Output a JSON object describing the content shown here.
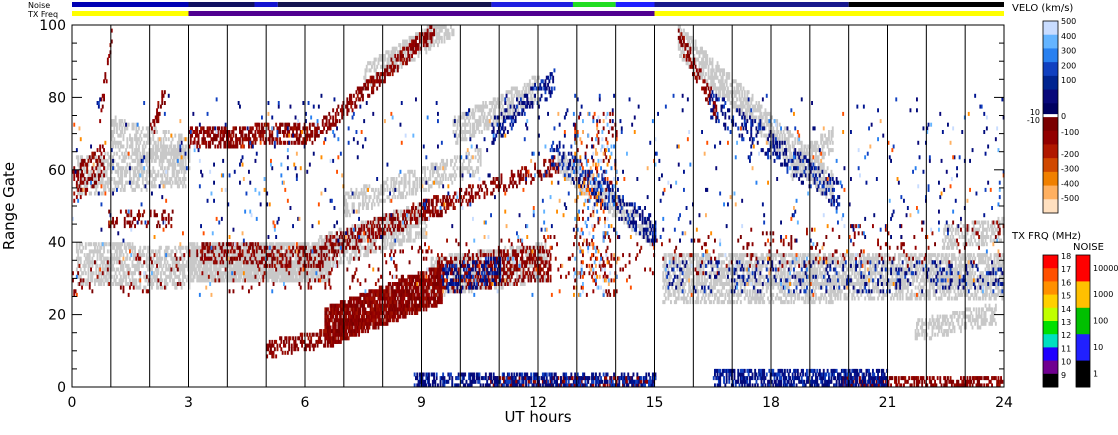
{
  "chart_data": {
    "type": "heatmap",
    "title": "",
    "xlabel": "UT hours",
    "ylabel": "Range Gate",
    "xlim": [
      0,
      24
    ],
    "ylim": [
      0,
      100
    ],
    "x_ticks": [
      0,
      3,
      6,
      9,
      12,
      15,
      18,
      21,
      24
    ],
    "y_ticks": [
      0,
      20,
      40,
      60,
      80,
      100
    ],
    "grid": "vertical lines every 1 UT hour",
    "strip_labels": {
      "noise": "Noise",
      "freq": "TX Freq"
    },
    "noise_strip": [
      {
        "from": 0.0,
        "to": 3.0,
        "color": "#0000b4"
      },
      {
        "from": 3.0,
        "to": 4.7,
        "color": "#101060"
      },
      {
        "from": 4.7,
        "to": 5.3,
        "color": "#1414d0"
      },
      {
        "from": 5.3,
        "to": 10.8,
        "color": "#141450"
      },
      {
        "from": 10.8,
        "to": 12.9,
        "color": "#2020e0"
      },
      {
        "from": 12.9,
        "to": 14.0,
        "color": "#22dd22"
      },
      {
        "from": 14.0,
        "to": 15.0,
        "color": "#2020ff"
      },
      {
        "from": 15.0,
        "to": 20.0,
        "color": "#18188c"
      },
      {
        "from": 20.0,
        "to": 24.0,
        "color": "#000000"
      }
    ],
    "freq_strip": [
      {
        "from": 0.0,
        "to": 3.0,
        "color": "#ffff00"
      },
      {
        "from": 3.0,
        "to": 15.0,
        "color": "#500090"
      },
      {
        "from": 15.0,
        "to": 24.0,
        "color": "#ffff00"
      }
    ],
    "velocity_colorbar": {
      "title": "VELO (km/s)",
      "ticks": [
        500,
        400,
        300,
        200,
        100,
        10,
        0,
        -10,
        -100,
        -200,
        -300,
        -400,
        -500
      ],
      "colors": [
        "#c8dcff",
        "#64b4ff",
        "#2880f0",
        "#1040c0",
        "#002490",
        "#08087a",
        "#000060",
        "#7a0000",
        "#920000",
        "#b01800",
        "#d04800",
        "#f08000",
        "#ffb060",
        "#ffe0c0"
      ]
    },
    "freq_colorbar": {
      "title": "TX FRQ (MHz)",
      "ticks": [
        18,
        17,
        16,
        15,
        14,
        13,
        12,
        11,
        10,
        9
      ],
      "colors": [
        "#ff0000",
        "#ff5000",
        "#ff9000",
        "#ffd000",
        "#c0ff00",
        "#00e000",
        "#00e0c0",
        "#2000ff",
        "#700090",
        "#000000"
      ]
    },
    "noise_colorbar": {
      "title": "NOISE",
      "ticks": [
        "10000",
        "1000",
        "100",
        "10",
        "1"
      ],
      "colors": [
        "#ff0000",
        "#ffc000",
        "#00c000",
        "#2020ff",
        "#000000"
      ]
    },
    "ground_scatter_color": "#c8c8c8",
    "features": [
      {
        "kind": "ground",
        "t0": 0.1,
        "t1": 3.0,
        "g0": 34,
        "g1": 32,
        "w": 10,
        "dens": 0.55
      },
      {
        "kind": "ground",
        "t0": 0.1,
        "t1": 2.9,
        "g0": 58,
        "g1": 60,
        "w": 9,
        "dens": 0.5
      },
      {
        "kind": "ground",
        "t0": 1.0,
        "t1": 3.0,
        "g0": 70,
        "g1": 64,
        "w": 7,
        "dens": 0.45
      },
      {
        "kind": "ground",
        "t0": 3.0,
        "t1": 6.6,
        "g0": 34,
        "g1": 34,
        "w": 10,
        "dens": 0.85
      },
      {
        "kind": "ground",
        "t0": 6.3,
        "t1": 9.1,
        "g0": 36,
        "g1": 46,
        "w": 8,
        "dens": 0.6
      },
      {
        "kind": "ground",
        "t0": 9.2,
        "t1": 12.2,
        "g0": 30,
        "g1": 34,
        "w": 9,
        "dens": 0.55
      },
      {
        "kind": "ground",
        "t0": 7.0,
        "t1": 10.5,
        "g0": 50,
        "g1": 62,
        "w": 5,
        "dens": 0.45
      },
      {
        "kind": "ground",
        "t0": 9.8,
        "t1": 12.0,
        "g0": 70,
        "g1": 82,
        "w": 6,
        "dens": 0.5
      },
      {
        "kind": "ground",
        "t0": 12.5,
        "t1": 14.9,
        "g0": 62,
        "g1": 42,
        "w": 5,
        "dens": 0.55
      },
      {
        "kind": "ground",
        "t0": 15.6,
        "t1": 19.6,
        "g0": 95,
        "g1": 54,
        "w": 7,
        "dens": 0.6
      },
      {
        "kind": "ground",
        "t0": 18.5,
        "t1": 19.6,
        "g0": 60,
        "g1": 68,
        "w": 5,
        "dens": 0.5
      },
      {
        "kind": "ground",
        "t0": 15.2,
        "t1": 24.0,
        "g0": 32,
        "g1": 32,
        "w": 8,
        "dens": 0.6
      },
      {
        "kind": "ground",
        "t0": 15.2,
        "t1": 24.0,
        "g0": 25,
        "g1": 27,
        "w": 4,
        "dens": 0.45
      },
      {
        "kind": "ground",
        "t0": 21.7,
        "t1": 23.8,
        "g0": 15,
        "g1": 20,
        "w": 4,
        "dens": 0.5
      },
      {
        "kind": "ground",
        "t0": 22.4,
        "t1": 24.0,
        "g0": 41,
        "g1": 43,
        "w": 5,
        "dens": 0.45
      },
      {
        "kind": "ground",
        "t0": 7.5,
        "t1": 9.8,
        "g0": 85,
        "g1": 100,
        "w": 5,
        "dens": 0.55
      },
      {
        "kind": "neg",
        "t0": 3.0,
        "t1": 6.3,
        "g0": 68,
        "g1": 70,
        "w": 4,
        "dens": 0.55
      },
      {
        "kind": "neg",
        "t0": 6.3,
        "t1": 9.3,
        "g0": 70,
        "g1": 98,
        "w": 3,
        "dens": 0.5
      },
      {
        "kind": "neg",
        "t0": 3.3,
        "t1": 6.5,
        "g0": 37,
        "g1": 35,
        "w": 4,
        "dens": 0.35
      },
      {
        "kind": "neg",
        "t0": 6.5,
        "t1": 9.5,
        "g0": 38,
        "g1": 50,
        "w": 4,
        "dens": 0.45
      },
      {
        "kind": "neg",
        "t0": 9.5,
        "t1": 12.5,
        "g0": 50,
        "g1": 61,
        "w": 3,
        "dens": 0.35
      },
      {
        "kind": "neg",
        "t0": 6.5,
        "t1": 9.5,
        "g0": 16,
        "g1": 28,
        "w": 9,
        "dens": 0.85
      },
      {
        "kind": "neg",
        "t0": 9.3,
        "t1": 12.3,
        "g0": 30,
        "g1": 34,
        "w": 8,
        "dens": 0.4
      },
      {
        "kind": "neg",
        "t0": 5.0,
        "t1": 7.0,
        "g0": 10,
        "g1": 14,
        "w": 3,
        "dens": 0.45
      },
      {
        "kind": "neg",
        "t0": 0.0,
        "t1": 0.8,
        "g0": 55,
        "g1": 62,
        "w": 8,
        "dens": 0.35
      },
      {
        "kind": "neg",
        "t0": 0.7,
        "t1": 1.0,
        "g0": 74,
        "g1": 96,
        "w": 4,
        "dens": 0.4
      },
      {
        "kind": "neg",
        "t0": 2.0,
        "t1": 2.4,
        "g0": 70,
        "g1": 82,
        "w": 4,
        "dens": 0.35
      },
      {
        "kind": "neg",
        "t0": 0.9,
        "t1": 2.6,
        "g0": 46,
        "g1": 46,
        "w": 3,
        "dens": 0.25
      },
      {
        "kind": "neg",
        "t0": 10.6,
        "t1": 15.0,
        "g0": 0.4,
        "g1": 0.4,
        "w": 1.6,
        "dens": 0.45
      },
      {
        "kind": "neg",
        "t0": 19.8,
        "t1": 24.0,
        "g0": 0.4,
        "g1": 0.4,
        "w": 1.6,
        "dens": 0.5
      },
      {
        "kind": "neg",
        "t0": 15.6,
        "t1": 16.6,
        "g0": 96,
        "g1": 76,
        "w": 4,
        "dens": 0.35
      },
      {
        "kind": "neg",
        "t0": 0.0,
        "t1": 24.0,
        "g0": 30,
        "g1": 40,
        "w": 10,
        "dens": 0.05
      },
      {
        "kind": "pos",
        "t0": 8.8,
        "t1": 15.0,
        "g0": 1.5,
        "g1": 1.5,
        "w": 3,
        "dens": 0.5
      },
      {
        "kind": "pos",
        "t0": 16.5,
        "t1": 21.0,
        "g0": 1.5,
        "g1": 1.5,
        "w": 3.5,
        "dens": 0.6
      },
      {
        "kind": "pos",
        "t0": 9.5,
        "t1": 11.0,
        "g0": 29,
        "g1": 32,
        "w": 6,
        "dens": 0.3
      },
      {
        "kind": "pos",
        "t0": 12.3,
        "t1": 15.0,
        "g0": 65,
        "g1": 42,
        "w": 6,
        "dens": 0.3
      },
      {
        "kind": "pos",
        "t0": 16.4,
        "t1": 19.8,
        "g0": 78,
        "g1": 52,
        "w": 6,
        "dens": 0.25
      },
      {
        "kind": "pos",
        "t0": 10.8,
        "t1": 12.4,
        "g0": 70,
        "g1": 84,
        "w": 5,
        "dens": 0.3
      },
      {
        "kind": "pos",
        "t0": 15.3,
        "t1": 24.0,
        "g0": 30,
        "g1": 30,
        "w": 8,
        "dens": 0.12
      },
      {
        "kind": "pos",
        "t0": 0.0,
        "t1": 24.0,
        "g0": 60,
        "g1": 60,
        "w": 40,
        "dens": 0.015
      },
      {
        "kind": "light",
        "t0": 0.0,
        "t1": 24.0,
        "g0": 50,
        "g1": 50,
        "w": 50,
        "dens": 0.012
      },
      {
        "kind": "light",
        "t0": 12.9,
        "t1": 14.0,
        "g0": 50,
        "g1": 50,
        "w": 50,
        "dens": 0.1
      },
      {
        "kind": "neg",
        "t0": 12.9,
        "t1": 14.0,
        "g0": 50,
        "g1": 50,
        "w": 50,
        "dens": 0.08
      }
    ]
  }
}
